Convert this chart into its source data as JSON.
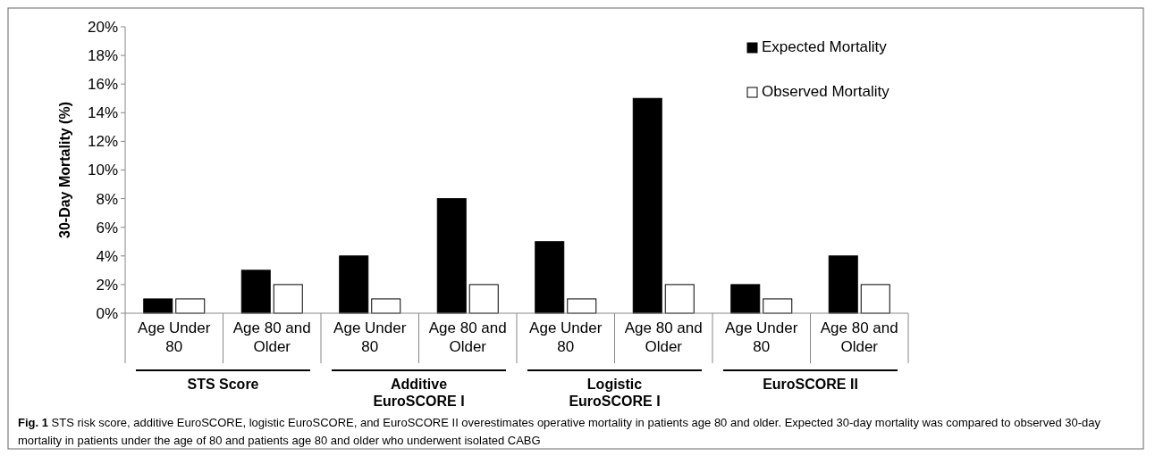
{
  "chart_data": {
    "type": "bar",
    "ylabel": "30-Day Mortality (%)",
    "categories": [
      "Age Under 80",
      "Age 80 and Older",
      "Age Under 80",
      "Age 80 and Older",
      "Age Under 80",
      "Age 80 and Older",
      "Age Under 80",
      "Age 80 and Older"
    ],
    "series": [
      {
        "name": "Expected Mortality",
        "color": "#000000",
        "values": [
          1,
          3,
          4,
          8,
          5,
          15,
          2,
          4
        ]
      },
      {
        "name": "Observed Mortality",
        "color": "#ffffff",
        "values": [
          1,
          2,
          1,
          2,
          1,
          2,
          1,
          2
        ]
      }
    ],
    "ylim": [
      0,
      20
    ],
    "yticks": [
      {
        "value": 0,
        "label": "0%"
      },
      {
        "value": 2,
        "label": "2%"
      },
      {
        "value": 4,
        "label": "4%"
      },
      {
        "value": 6,
        "label": "6%"
      },
      {
        "value": 8,
        "label": "8%"
      },
      {
        "value": 10,
        "label": "10%"
      },
      {
        "value": 12,
        "label": "12%"
      },
      {
        "value": 14,
        "label": "14%"
      },
      {
        "value": 16,
        "label": "16%"
      },
      {
        "value": 18,
        "label": "18%"
      },
      {
        "value": 20,
        "label": "20%"
      }
    ],
    "grid": false,
    "legend": "top right",
    "annotations": [
      "STS Score",
      "Additive EuroSCORE I",
      "Logistic EuroSCORE I",
      "EuroSCORE II",
      "Fig. 1 STS risk score, additive EuroSCORE, logistic EuroSCORE, and EuroSCORE II overestimates operative mortality in patients age 80 and older. Expected 30-day mortality was compared to observed 30-day mortality in patients under the age of 80 and patients age 80 and older who underwent isolated CABG"
    ]
  }
}
